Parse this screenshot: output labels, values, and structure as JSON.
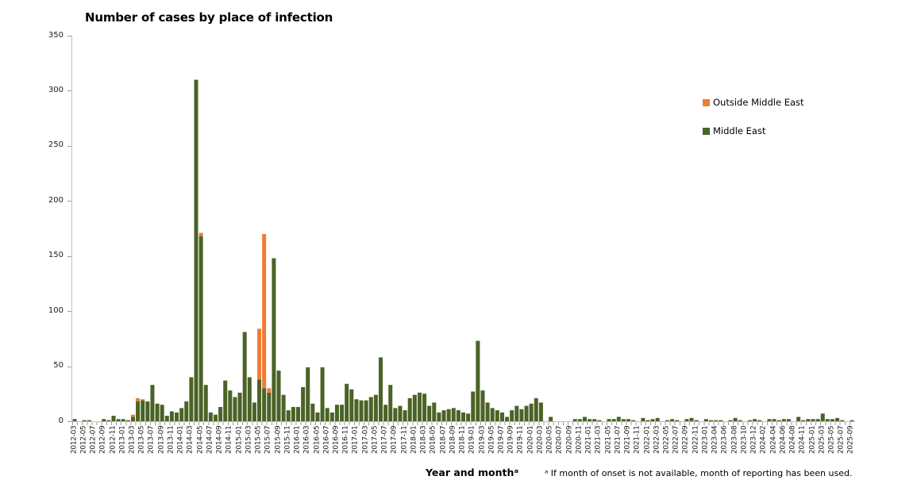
{
  "chart_data": {
    "type": "bar",
    "variant": "stacked-vertical",
    "title": "Number of cases by place of infection",
    "xlabel": "Year and monthᵃ",
    "footnote": "ᵃ If month of onset is not available, month of reporting has been used.",
    "ylim": [
      0,
      350
    ],
    "y_ticks": [
      0,
      50,
      100,
      150,
      200,
      250,
      300,
      350
    ],
    "grid": false,
    "legend_position": "right",
    "legend": [
      {
        "label": "Outside Middle East",
        "color": "#ED7D31"
      },
      {
        "label": "Middle East",
        "color": "#4A6326"
      }
    ],
    "x_tick_label_rotation": 90,
    "x_tick_label_every_n": 2,
    "categories": [
      "2012-03",
      "2012-04",
      "2012-05",
      "2012-06",
      "2012-07",
      "2012-08",
      "2012-09",
      "2012-10",
      "2012-11",
      "2012-12",
      "2013-01",
      "2013-02",
      "2013-03",
      "2013-04",
      "2013-05",
      "2013-06",
      "2013-07",
      "2013-08",
      "2013-09",
      "2013-10",
      "2013-11",
      "2013-12",
      "2014-01",
      "2014-02",
      "2014-03",
      "2014-04",
      "2014-05",
      "2014-06",
      "2014-07",
      "2014-08",
      "2014-09",
      "2014-10",
      "2014-11",
      "2014-12",
      "2015-01",
      "2015-02",
      "2015-03",
      "2015-04",
      "2015-05",
      "2015-06",
      "2015-07",
      "2015-08",
      "2015-09",
      "2015-10",
      "2015-11",
      "2015-12",
      "2016-01",
      "2016-02",
      "2016-03",
      "2016-04",
      "2016-05",
      "2016-06",
      "2016-07",
      "2016-08",
      "2016-09",
      "2016-10",
      "2016-11",
      "2016-12",
      "2017-01",
      "2017-02",
      "2017-03",
      "2017-04",
      "2017-05",
      "2017-06",
      "2017-07",
      "2017-08",
      "2017-09",
      "2017-10",
      "2017-11",
      "2017-12",
      "2018-01",
      "2018-02",
      "2018-03",
      "2018-04",
      "2018-05",
      "2018-06",
      "2018-07",
      "2018-08",
      "2018-09",
      "2018-10",
      "2018-11",
      "2018-12",
      "2019-01",
      "2019-02",
      "2019-03",
      "2019-04",
      "2019-05",
      "2019-06",
      "2019-07",
      "2019-08",
      "2019-09",
      "2019-10",
      "2019-11",
      "2019-12",
      "2020-01",
      "2020-02",
      "2020-03",
      "2020-04",
      "2020-05",
      "2020-06",
      "2020-07",
      "2020-08",
      "2020-09",
      "2020-10",
      "2020-11",
      "2020-12",
      "2021-01",
      "2021-02",
      "2021-03",
      "2021-04",
      "2021-05",
      "2021-06",
      "2021-07",
      "2021-08",
      "2021-09",
      "2021-10",
      "2021-11",
      "2021-12",
      "2022-01",
      "2022-02",
      "2022-03",
      "2022-04",
      "2022-05",
      "2022-06",
      "2022-07",
      "2022-08",
      "2022-09",
      "2022-10",
      "2022-11",
      "2022-12",
      "2023-01",
      "2023-03",
      "2023-04",
      "2023-05",
      "2023-06",
      "2023-07",
      "2023-08",
      "2023-09",
      "2023-10",
      "2023-11",
      "2023-12",
      "2024-01",
      "2024-02",
      "2024-03",
      "2024-04",
      "2024-05",
      "2024-06",
      "2024-07",
      "2024-08",
      "2024-10",
      "2024-11",
      "2024-12",
      "2025-01",
      "2025-02",
      "2025-03",
      "2025-04",
      "2025-05",
      "2025-06",
      "2025-07",
      "2025-08",
      "2025-09"
    ],
    "series": [
      {
        "name": "Middle East",
        "color": "#4A6326",
        "values": [
          2,
          0,
          1,
          1,
          0,
          0,
          2,
          1,
          5,
          2,
          2,
          1,
          4,
          18,
          19,
          18,
          33,
          16,
          15,
          5,
          9,
          8,
          12,
          18,
          40,
          310,
          168,
          33,
          8,
          6,
          13,
          37,
          28,
          22,
          26,
          81,
          40,
          17,
          38,
          30,
          26,
          148,
          46,
          24,
          10,
          13,
          13,
          31,
          49,
          16,
          8,
          49,
          12,
          8,
          15,
          15,
          34,
          29,
          20,
          19,
          19,
          22,
          24,
          58,
          15,
          33,
          12,
          14,
          10,
          21,
          24,
          26,
          25,
          14,
          17,
          8,
          10,
          11,
          12,
          10,
          8,
          7,
          27,
          73,
          28,
          17,
          12,
          10,
          8,
          4,
          10,
          14,
          11,
          14,
          16,
          21,
          17,
          0,
          4,
          0,
          0,
          0,
          0,
          2,
          2,
          4,
          2,
          2,
          1,
          0,
          2,
          2,
          4,
          2,
          2,
          1,
          0,
          3,
          1,
          2,
          3,
          0,
          1,
          2,
          1,
          0,
          2,
          3,
          1,
          0,
          2,
          1,
          1,
          1,
          0,
          1,
          3,
          1,
          0,
          1,
          2,
          1,
          0,
          2,
          2,
          1,
          2,
          2,
          0,
          4,
          1,
          2,
          2,
          2,
          7,
          2,
          2,
          3,
          1,
          0,
          1
        ]
      },
      {
        "name": "Outside Middle East",
        "color": "#ED7D31",
        "values": [
          0,
          0,
          0,
          0,
          0,
          0,
          0,
          0,
          0,
          0,
          0,
          0,
          2,
          3,
          1,
          0,
          0,
          0,
          0,
          0,
          0,
          0,
          0,
          0,
          0,
          0,
          3,
          0,
          0,
          0,
          0,
          0,
          0,
          0,
          0,
          0,
          0,
          0,
          46,
          140,
          4,
          0,
          0,
          0,
          0,
          0,
          0,
          0,
          0,
          0,
          0,
          0,
          0,
          0,
          0,
          0,
          0,
          0,
          0,
          0,
          0,
          0,
          0,
          0,
          0,
          0,
          0,
          0,
          0,
          0,
          0,
          0,
          0,
          0,
          0,
          0,
          0,
          0,
          0,
          0,
          0,
          0,
          0,
          0,
          0,
          0,
          0,
          0,
          0,
          0,
          0,
          0,
          0,
          0,
          0,
          0,
          0,
          0,
          0,
          0,
          0,
          0,
          0,
          0,
          0,
          0,
          0,
          0,
          0,
          0,
          0,
          0,
          0,
          0,
          0,
          0,
          0,
          0,
          0,
          0,
          0,
          0,
          0,
          0,
          0,
          0,
          0,
          0,
          0,
          0,
          0,
          0,
          0,
          0,
          0,
          0,
          0,
          0,
          0,
          0,
          0,
          0,
          0,
          0,
          0,
          0,
          0,
          0,
          0,
          0,
          0,
          0,
          0,
          0,
          0,
          0,
          0,
          0,
          0,
          0,
          0
        ]
      }
    ]
  }
}
